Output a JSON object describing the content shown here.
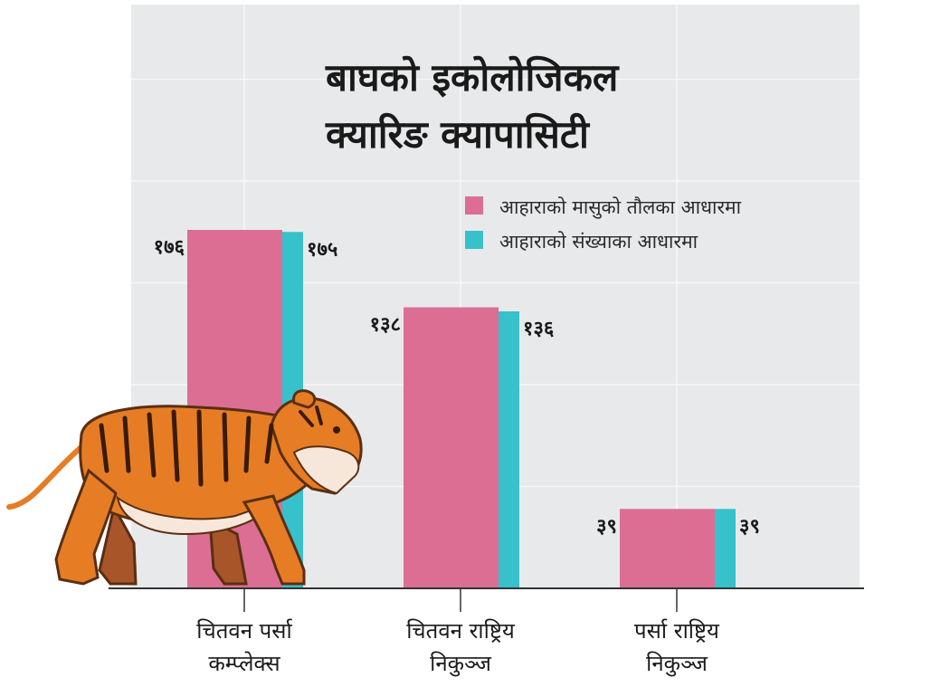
{
  "chart_data": {
    "type": "bar",
    "title_lines": [
      "बाघको इकोलोजिकल",
      "क्यारिङ क्यापासिटी"
    ],
    "categories": [
      [
        "चितवन पर्सा",
        "कम्प्लेक्स"
      ],
      [
        "चितवन राष्ट्रिय",
        "निकुञ्ज"
      ],
      [
        "पर्सा राष्ट्रिय",
        "निकुञ्ज"
      ]
    ],
    "series": [
      {
        "name": "आहाराको मासुको तौलका आधारमा",
        "color": "#DC6E94",
        "values": [
          176,
          138,
          39
        ],
        "labels": [
          "१७६",
          "१३८",
          "३९"
        ]
      },
      {
        "name": "आहाराको संख्याका आधारमा",
        "color": "#36C1CB",
        "values": [
          175,
          136,
          39
        ],
        "labels": [
          "१७५",
          "१३६",
          "३९"
        ]
      }
    ],
    "ylim": [
      0,
      280
    ],
    "grid": true,
    "legend_position": "top-right",
    "background": "#E8E9EA",
    "decoration": "tiger-illustration"
  }
}
